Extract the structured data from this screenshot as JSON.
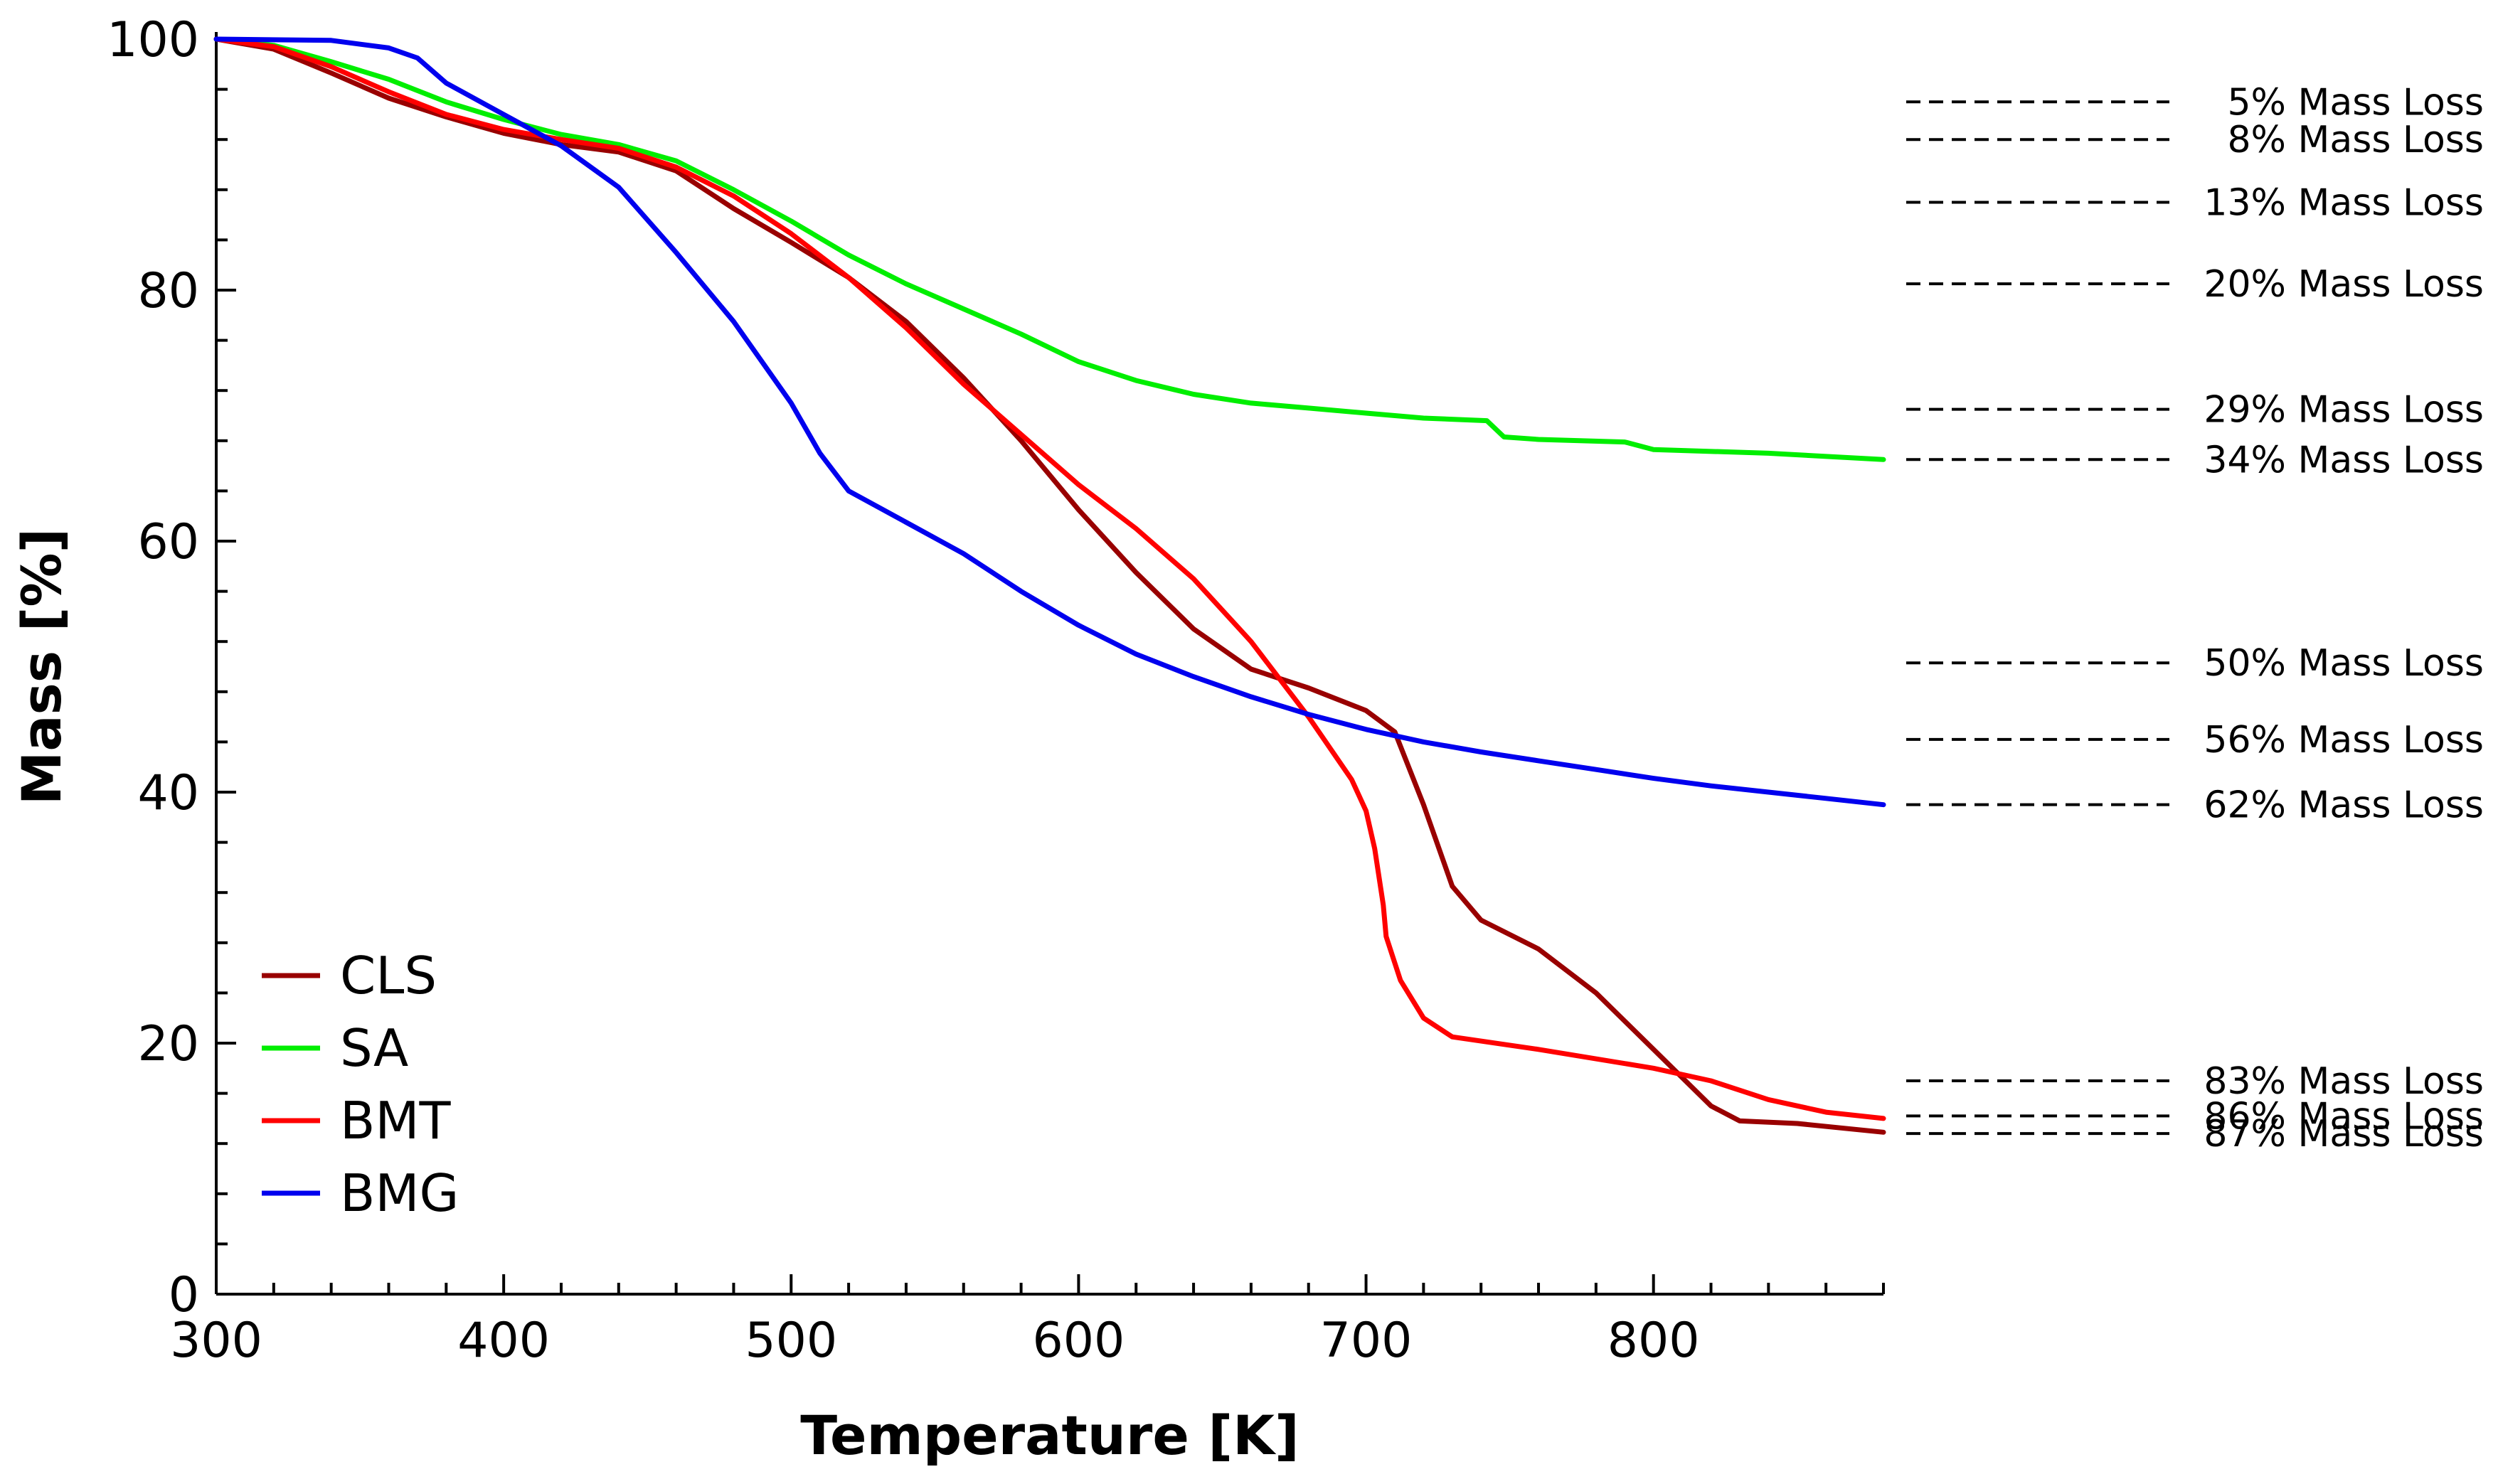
{
  "chart_data": {
    "type": "line",
    "title": "",
    "xlabel": "Temperature [K]",
    "ylabel": "Mass [%]",
    "xlim": [
      300,
      880
    ],
    "ylim": [
      0,
      100
    ],
    "x_ticks": [
      300,
      400,
      500,
      600,
      700,
      800
    ],
    "y_ticks": [
      0,
      20,
      40,
      60,
      80,
      100
    ],
    "grid": false,
    "legend_position": "bottom-left",
    "series": [
      {
        "name": "CLS",
        "color": "#990000",
        "points": [
          [
            300,
            100
          ],
          [
            320,
            99.2
          ],
          [
            340,
            97.3
          ],
          [
            360,
            95.3
          ],
          [
            380,
            93.8
          ],
          [
            400,
            92.5
          ],
          [
            420,
            91.6
          ],
          [
            440,
            91
          ],
          [
            460,
            89.5
          ],
          [
            480,
            86.5
          ],
          [
            500,
            83.8
          ],
          [
            520,
            81
          ],
          [
            540,
            77.5
          ],
          [
            560,
            73
          ],
          [
            580,
            68
          ],
          [
            600,
            62.5
          ],
          [
            620,
            57.5
          ],
          [
            640,
            53
          ],
          [
            660,
            49.8
          ],
          [
            680,
            48.3
          ],
          [
            700,
            46.5
          ],
          [
            710,
            44.8
          ],
          [
            720,
            39
          ],
          [
            730,
            32.5
          ],
          [
            740,
            29.8
          ],
          [
            760,
            27.5
          ],
          [
            780,
            24
          ],
          [
            800,
            19.5
          ],
          [
            820,
            15
          ],
          [
            830,
            13.8
          ],
          [
            850,
            13.6
          ],
          [
            880,
            12.9
          ]
        ]
      },
      {
        "name": "SA",
        "color": "#00ee00",
        "points": [
          [
            300,
            100
          ],
          [
            320,
            99.5
          ],
          [
            340,
            98.2
          ],
          [
            360,
            96.8
          ],
          [
            380,
            95
          ],
          [
            400,
            93.6
          ],
          [
            420,
            92.4
          ],
          [
            440,
            91.6
          ],
          [
            460,
            90.3
          ],
          [
            480,
            88
          ],
          [
            500,
            85.5
          ],
          [
            520,
            82.8
          ],
          [
            540,
            80.5
          ],
          [
            560,
            78.5
          ],
          [
            580,
            76.5
          ],
          [
            600,
            74.3
          ],
          [
            620,
            72.8
          ],
          [
            640,
            71.7
          ],
          [
            660,
            71
          ],
          [
            680,
            70.6
          ],
          [
            700,
            70.2
          ],
          [
            720,
            69.8
          ],
          [
            742,
            69.6
          ],
          [
            748,
            68.3
          ],
          [
            760,
            68.1
          ],
          [
            790,
            67.9
          ],
          [
            800,
            67.3
          ],
          [
            840,
            67
          ],
          [
            880,
            66.5
          ]
        ]
      },
      {
        "name": "BMT",
        "color": "#ff0000",
        "points": [
          [
            300,
            100
          ],
          [
            320,
            99.4
          ],
          [
            340,
            97.8
          ],
          [
            360,
            95.8
          ],
          [
            380,
            94
          ],
          [
            400,
            92.8
          ],
          [
            420,
            92
          ],
          [
            440,
            91.3
          ],
          [
            460,
            89.8
          ],
          [
            480,
            87.5
          ],
          [
            500,
            84.5
          ],
          [
            520,
            81
          ],
          [
            540,
            77
          ],
          [
            560,
            72.5
          ],
          [
            580,
            68.5
          ],
          [
            600,
            64.5
          ],
          [
            620,
            61
          ],
          [
            640,
            57
          ],
          [
            660,
            52
          ],
          [
            680,
            46
          ],
          [
            695,
            41
          ],
          [
            700,
            38.5
          ],
          [
            703,
            35.5
          ],
          [
            706,
            31
          ],
          [
            707,
            28.5
          ],
          [
            712,
            25
          ],
          [
            720,
            22
          ],
          [
            730,
            20.5
          ],
          [
            760,
            19.5
          ],
          [
            800,
            18
          ],
          [
            820,
            17
          ],
          [
            840,
            15.5
          ],
          [
            860,
            14.5
          ],
          [
            880,
            14
          ]
        ]
      },
      {
        "name": "BMG",
        "color": "#0000ee",
        "points": [
          [
            300,
            100
          ],
          [
            340,
            99.9
          ],
          [
            360,
            99.3
          ],
          [
            370,
            98.5
          ],
          [
            380,
            96.5
          ],
          [
            400,
            94
          ],
          [
            420,
            91.5
          ],
          [
            440,
            88.2
          ],
          [
            460,
            83
          ],
          [
            480,
            77.5
          ],
          [
            500,
            71
          ],
          [
            510,
            67
          ],
          [
            520,
            64
          ],
          [
            540,
            61.5
          ],
          [
            560,
            59
          ],
          [
            580,
            56
          ],
          [
            600,
            53.3
          ],
          [
            620,
            51
          ],
          [
            640,
            49.2
          ],
          [
            660,
            47.6
          ],
          [
            680,
            46.2
          ],
          [
            700,
            45
          ],
          [
            720,
            44
          ],
          [
            740,
            43.2
          ],
          [
            760,
            42.5
          ],
          [
            780,
            41.8
          ],
          [
            800,
            41.1
          ],
          [
            820,
            40.5
          ],
          [
            840,
            40
          ],
          [
            860,
            39.5
          ],
          [
            880,
            39
          ]
        ]
      }
    ],
    "reference_lines": [
      {
        "label": "5% Mass Loss",
        "y": 95
      },
      {
        "label": "8% Mass Loss",
        "y": 92
      },
      {
        "label": "13% Mass Loss",
        "y": 87
      },
      {
        "label": "20% Mass Loss",
        "y": 80.5
      },
      {
        "label": "29% Mass Loss",
        "y": 70.5
      },
      {
        "label": "34% Mass Loss",
        "y": 66.5
      },
      {
        "label": "50% Mass Loss",
        "y": 50.3
      },
      {
        "label": "56% Mass Loss",
        "y": 44.2
      },
      {
        "label": "62% Mass Loss",
        "y": 39
      },
      {
        "label": "83% Mass Loss",
        "y": 17
      },
      {
        "label": "86% Mass Loss",
        "y": 14.2
      },
      {
        "label": "87% Mass Loss",
        "y": 12.8
      }
    ]
  }
}
